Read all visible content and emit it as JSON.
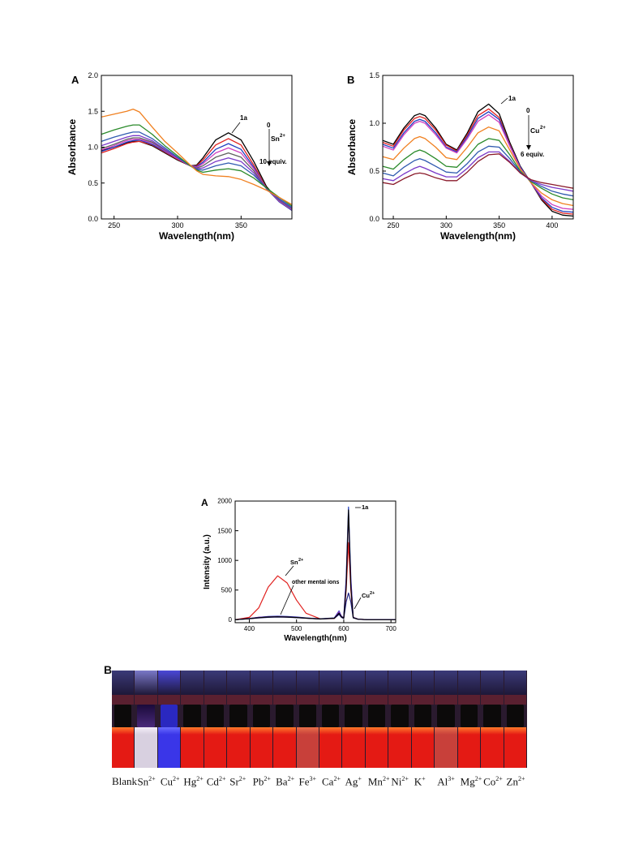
{
  "figures": {
    "uv_a_letter": "A",
    "uv_b_letter": "B",
    "fl_a_letter": "A",
    "photo_letter": "B"
  },
  "chart_data": [
    {
      "type": "line",
      "panel": "A",
      "xlabel": "Wavelength(nm)",
      "ylabel": "Absorbance",
      "xlim": [
        240,
        390
      ],
      "ylim": [
        0,
        2.0
      ],
      "xticks": [
        250,
        300,
        350
      ],
      "yticks": [
        0.0,
        0.5,
        1.0,
        1.5,
        2.0
      ],
      "ytick_labels": [
        "0.0",
        "0.5",
        "1.0",
        "1.5",
        "2.0"
      ],
      "annotations": [
        "1a",
        "0",
        "Sn",
        "2+",
        "10 equiv."
      ],
      "x": [
        240,
        250,
        260,
        265,
        270,
        280,
        290,
        300,
        310,
        315,
        320,
        330,
        340,
        350,
        360,
        370,
        380,
        390
      ],
      "series": [
        {
          "color": "#000000",
          "values": [
            0.95,
            1.0,
            1.06,
            1.08,
            1.08,
            1.02,
            0.92,
            0.82,
            0.74,
            0.75,
            0.85,
            1.1,
            1.2,
            1.1,
            0.8,
            0.45,
            0.25,
            0.12
          ]
        },
        {
          "color": "#e0201e",
          "values": [
            0.92,
            0.98,
            1.05,
            1.07,
            1.08,
            1.03,
            0.93,
            0.83,
            0.74,
            0.74,
            0.82,
            1.03,
            1.12,
            1.03,
            0.75,
            0.43,
            0.24,
            0.12
          ]
        },
        {
          "color": "#2040c0",
          "values": [
            0.94,
            1.0,
            1.07,
            1.09,
            1.1,
            1.04,
            0.94,
            0.84,
            0.74,
            0.73,
            0.79,
            0.97,
            1.05,
            0.97,
            0.72,
            0.42,
            0.24,
            0.12
          ]
        },
        {
          "color": "#d040c0",
          "values": [
            0.96,
            1.02,
            1.09,
            1.11,
            1.11,
            1.06,
            0.95,
            0.84,
            0.74,
            0.72,
            0.77,
            0.92,
            0.99,
            0.92,
            0.7,
            0.42,
            0.25,
            0.13
          ]
        },
        {
          "color": "#606060",
          "values": [
            0.98,
            1.04,
            1.11,
            1.13,
            1.13,
            1.07,
            0.96,
            0.85,
            0.74,
            0.71,
            0.74,
            0.86,
            0.92,
            0.86,
            0.67,
            0.42,
            0.26,
            0.14
          ]
        },
        {
          "color": "#7a38c8",
          "values": [
            1.02,
            1.08,
            1.14,
            1.16,
            1.16,
            1.09,
            0.97,
            0.85,
            0.74,
            0.7,
            0.71,
            0.8,
            0.85,
            0.8,
            0.64,
            0.42,
            0.27,
            0.15
          ]
        },
        {
          "color": "#305ab0",
          "values": [
            1.08,
            1.14,
            1.19,
            1.21,
            1.21,
            1.12,
            0.99,
            0.86,
            0.74,
            0.69,
            0.68,
            0.74,
            0.78,
            0.74,
            0.61,
            0.43,
            0.28,
            0.16
          ]
        },
        {
          "color": "#2a8a2a",
          "values": [
            1.18,
            1.24,
            1.29,
            1.31,
            1.31,
            1.18,
            1.02,
            0.88,
            0.74,
            0.68,
            0.65,
            0.68,
            0.7,
            0.67,
            0.57,
            0.43,
            0.3,
            0.18
          ]
        },
        {
          "color": "#f08020",
          "values": [
            1.42,
            1.46,
            1.5,
            1.53,
            1.49,
            1.28,
            1.08,
            0.92,
            0.75,
            0.67,
            0.62,
            0.6,
            0.59,
            0.55,
            0.48,
            0.4,
            0.3,
            0.2
          ]
        }
      ]
    },
    {
      "type": "line",
      "panel": "B",
      "xlabel": "Wavelength(nm)",
      "ylabel": "Absorbance",
      "xlim": [
        240,
        420
      ],
      "ylim": [
        0,
        1.5
      ],
      "xticks": [
        250,
        300,
        350,
        400
      ],
      "yticks": [
        0.0,
        0.5,
        1.0,
        1.5
      ],
      "ytick_labels": [
        "0.0",
        "0.5",
        "1.0",
        "1.5"
      ],
      "annotations": [
        "1a",
        "0",
        "Cu",
        "2+",
        "6 equiv."
      ],
      "x": [
        240,
        250,
        260,
        270,
        275,
        280,
        290,
        300,
        310,
        320,
        330,
        340,
        350,
        360,
        370,
        380,
        390,
        400,
        410,
        420
      ],
      "series": [
        {
          "color": "#000000",
          "values": [
            0.82,
            0.78,
            0.95,
            1.08,
            1.1,
            1.08,
            0.95,
            0.78,
            0.72,
            0.9,
            1.12,
            1.2,
            1.1,
            0.8,
            0.55,
            0.38,
            0.2,
            0.08,
            0.04,
            0.03
          ]
        },
        {
          "color": "#e0201e",
          "values": [
            0.8,
            0.76,
            0.93,
            1.05,
            1.07,
            1.05,
            0.93,
            0.77,
            0.71,
            0.88,
            1.08,
            1.15,
            1.06,
            0.78,
            0.54,
            0.38,
            0.21,
            0.1,
            0.06,
            0.05
          ]
        },
        {
          "color": "#2040c0",
          "values": [
            0.78,
            0.74,
            0.9,
            1.02,
            1.04,
            1.02,
            0.9,
            0.75,
            0.7,
            0.86,
            1.05,
            1.12,
            1.04,
            0.77,
            0.54,
            0.38,
            0.22,
            0.12,
            0.08,
            0.07
          ]
        },
        {
          "color": "#d040c0",
          "values": [
            0.76,
            0.72,
            0.88,
            1.0,
            1.02,
            1.0,
            0.88,
            0.74,
            0.69,
            0.84,
            1.02,
            1.09,
            1.01,
            0.76,
            0.53,
            0.38,
            0.24,
            0.15,
            0.11,
            0.1
          ]
        },
        {
          "color": "#f08020",
          "values": [
            0.65,
            0.62,
            0.74,
            0.84,
            0.86,
            0.84,
            0.75,
            0.64,
            0.62,
            0.75,
            0.9,
            0.96,
            0.92,
            0.72,
            0.52,
            0.38,
            0.27,
            0.2,
            0.16,
            0.14
          ]
        },
        {
          "color": "#2a8a2a",
          "values": [
            0.55,
            0.52,
            0.62,
            0.7,
            0.72,
            0.7,
            0.63,
            0.55,
            0.54,
            0.65,
            0.78,
            0.84,
            0.82,
            0.67,
            0.5,
            0.39,
            0.32,
            0.26,
            0.22,
            0.2
          ]
        },
        {
          "color": "#305ab0",
          "values": [
            0.48,
            0.45,
            0.54,
            0.61,
            0.63,
            0.61,
            0.55,
            0.49,
            0.48,
            0.58,
            0.7,
            0.76,
            0.75,
            0.63,
            0.49,
            0.4,
            0.34,
            0.29,
            0.26,
            0.24
          ]
        },
        {
          "color": "#7a38c8",
          "values": [
            0.42,
            0.4,
            0.47,
            0.53,
            0.55,
            0.53,
            0.48,
            0.44,
            0.44,
            0.53,
            0.64,
            0.7,
            0.7,
            0.6,
            0.48,
            0.4,
            0.36,
            0.33,
            0.31,
            0.29
          ]
        },
        {
          "color": "#8a1a2a",
          "values": [
            0.38,
            0.36,
            0.42,
            0.47,
            0.48,
            0.47,
            0.43,
            0.4,
            0.4,
            0.49,
            0.6,
            0.67,
            0.68,
            0.59,
            0.48,
            0.41,
            0.38,
            0.36,
            0.34,
            0.32
          ]
        }
      ]
    },
    {
      "type": "line",
      "panel": "A",
      "xlabel": "Wavelength(nm)",
      "ylabel": "Intensity (a.u.)",
      "xlim": [
        370,
        710
      ],
      "ylim": [
        -50,
        2000
      ],
      "xticks": [
        400,
        500,
        600,
        700
      ],
      "yticks": [
        0,
        500,
        1000,
        1500,
        2000
      ],
      "ytick_labels": [
        "0",
        "500",
        "1000",
        "1500",
        "2000"
      ],
      "annotations": [
        "1a",
        "Sn",
        "2+",
        "other mental ions",
        "Cu",
        "2+"
      ],
      "x": [
        370,
        400,
        420,
        440,
        460,
        480,
        500,
        520,
        550,
        580,
        590,
        595,
        600,
        605,
        610,
        615,
        620,
        630,
        650,
        700,
        710
      ],
      "series": [
        {
          "color": "#e0201e",
          "values": [
            0,
            40,
            200,
            550,
            740,
            620,
            330,
            110,
            15,
            20,
            120,
            60,
            30,
            500,
            1300,
            500,
            40,
            10,
            0,
            0,
            0
          ]
        },
        {
          "color": "#2040c0",
          "values": [
            0,
            20,
            40,
            55,
            60,
            55,
            45,
            30,
            15,
            30,
            150,
            60,
            30,
            700,
            1900,
            700,
            40,
            10,
            0,
            0,
            0
          ]
        },
        {
          "color": "#7a38c8",
          "values": [
            0,
            20,
            40,
            50,
            55,
            50,
            42,
            28,
            14,
            28,
            140,
            55,
            28,
            650,
            1750,
            650,
            40,
            10,
            0,
            0,
            0
          ]
        },
        {
          "color": "#202080",
          "values": [
            0,
            15,
            30,
            40,
            45,
            42,
            35,
            25,
            12,
            22,
            90,
            40,
            20,
            300,
            450,
            300,
            30,
            8,
            0,
            0,
            0
          ]
        },
        {
          "color": "#000000",
          "values": [
            0,
            18,
            35,
            45,
            50,
            46,
            38,
            26,
            13,
            25,
            110,
            50,
            25,
            550,
            1850,
            550,
            35,
            9,
            0,
            0,
            0
          ]
        }
      ]
    }
  ],
  "photo": {
    "vials": [
      {
        "top": "#3b3a78",
        "body": "#e41a14",
        "highlight": "#ff7a2a"
      },
      {
        "top": "#7a78c8",
        "body": "#d8d0e0",
        "highlight": "#f4eef8"
      },
      {
        "top": "#4a48d8",
        "body": "#3a36e8",
        "highlight": "#6a6cff"
      },
      {
        "top": "#3b3a78",
        "body": "#e41a14",
        "highlight": "#ff7a2a"
      },
      {
        "top": "#3b3a78",
        "body": "#e41a14",
        "highlight": "#ff7a2a"
      },
      {
        "top": "#3b3a78",
        "body": "#e41a14",
        "highlight": "#ff7a2a"
      },
      {
        "top": "#3b3a78",
        "body": "#e41a14",
        "highlight": "#ff7a2a"
      },
      {
        "top": "#3b3a78",
        "body": "#e41a14",
        "highlight": "#ff7a2a"
      },
      {
        "top": "#3b3a78",
        "body": "#c8403a",
        "highlight": "#e8704a"
      },
      {
        "top": "#3b3a78",
        "body": "#e41a14",
        "highlight": "#ff7a2a"
      },
      {
        "top": "#3b3a78",
        "body": "#e41a14",
        "highlight": "#ff7a2a"
      },
      {
        "top": "#3b3a78",
        "body": "#e41a14",
        "highlight": "#ff7a2a"
      },
      {
        "top": "#3b3a78",
        "body": "#e41a14",
        "highlight": "#ff7a2a"
      },
      {
        "top": "#3b3a78",
        "body": "#e41a14",
        "highlight": "#ff7a2a"
      },
      {
        "top": "#3b3a78",
        "body": "#c8403a",
        "highlight": "#e8704a"
      },
      {
        "top": "#3b3a78",
        "body": "#e41a14",
        "highlight": "#ff7a2a"
      },
      {
        "top": "#3b3a78",
        "body": "#e41a14",
        "highlight": "#ff7a2a"
      },
      {
        "top": "#3b3a78",
        "body": "#e41a14",
        "highlight": "#ff7a2a"
      }
    ],
    "labels": [
      {
        "base": "Blank",
        "sup": ""
      },
      {
        "base": "Sn",
        "sup": "2+"
      },
      {
        "base": "Cu",
        "sup": "2+"
      },
      {
        "base": "Hg",
        "sup": "2+"
      },
      {
        "base": "Cd",
        "sup": "2+"
      },
      {
        "base": "Sr",
        "sup": "2+"
      },
      {
        "base": "Pb",
        "sup": "2+"
      },
      {
        "base": "Ba",
        "sup": "2+"
      },
      {
        "base": "Fe",
        "sup": "3+"
      },
      {
        "base": "Ca",
        "sup": "2+"
      },
      {
        "base": "Ag",
        "sup": "+"
      },
      {
        "base": "Mn",
        "sup": "2+"
      },
      {
        "base": "Ni",
        "sup": "2+"
      },
      {
        "base": "K",
        "sup": "+"
      },
      {
        "base": "Al",
        "sup": "3+"
      },
      {
        "base": "Mg",
        "sup": "2+"
      },
      {
        "base": "Co",
        "sup": "2+"
      },
      {
        "base": "Zn",
        "sup": "2+"
      }
    ]
  }
}
